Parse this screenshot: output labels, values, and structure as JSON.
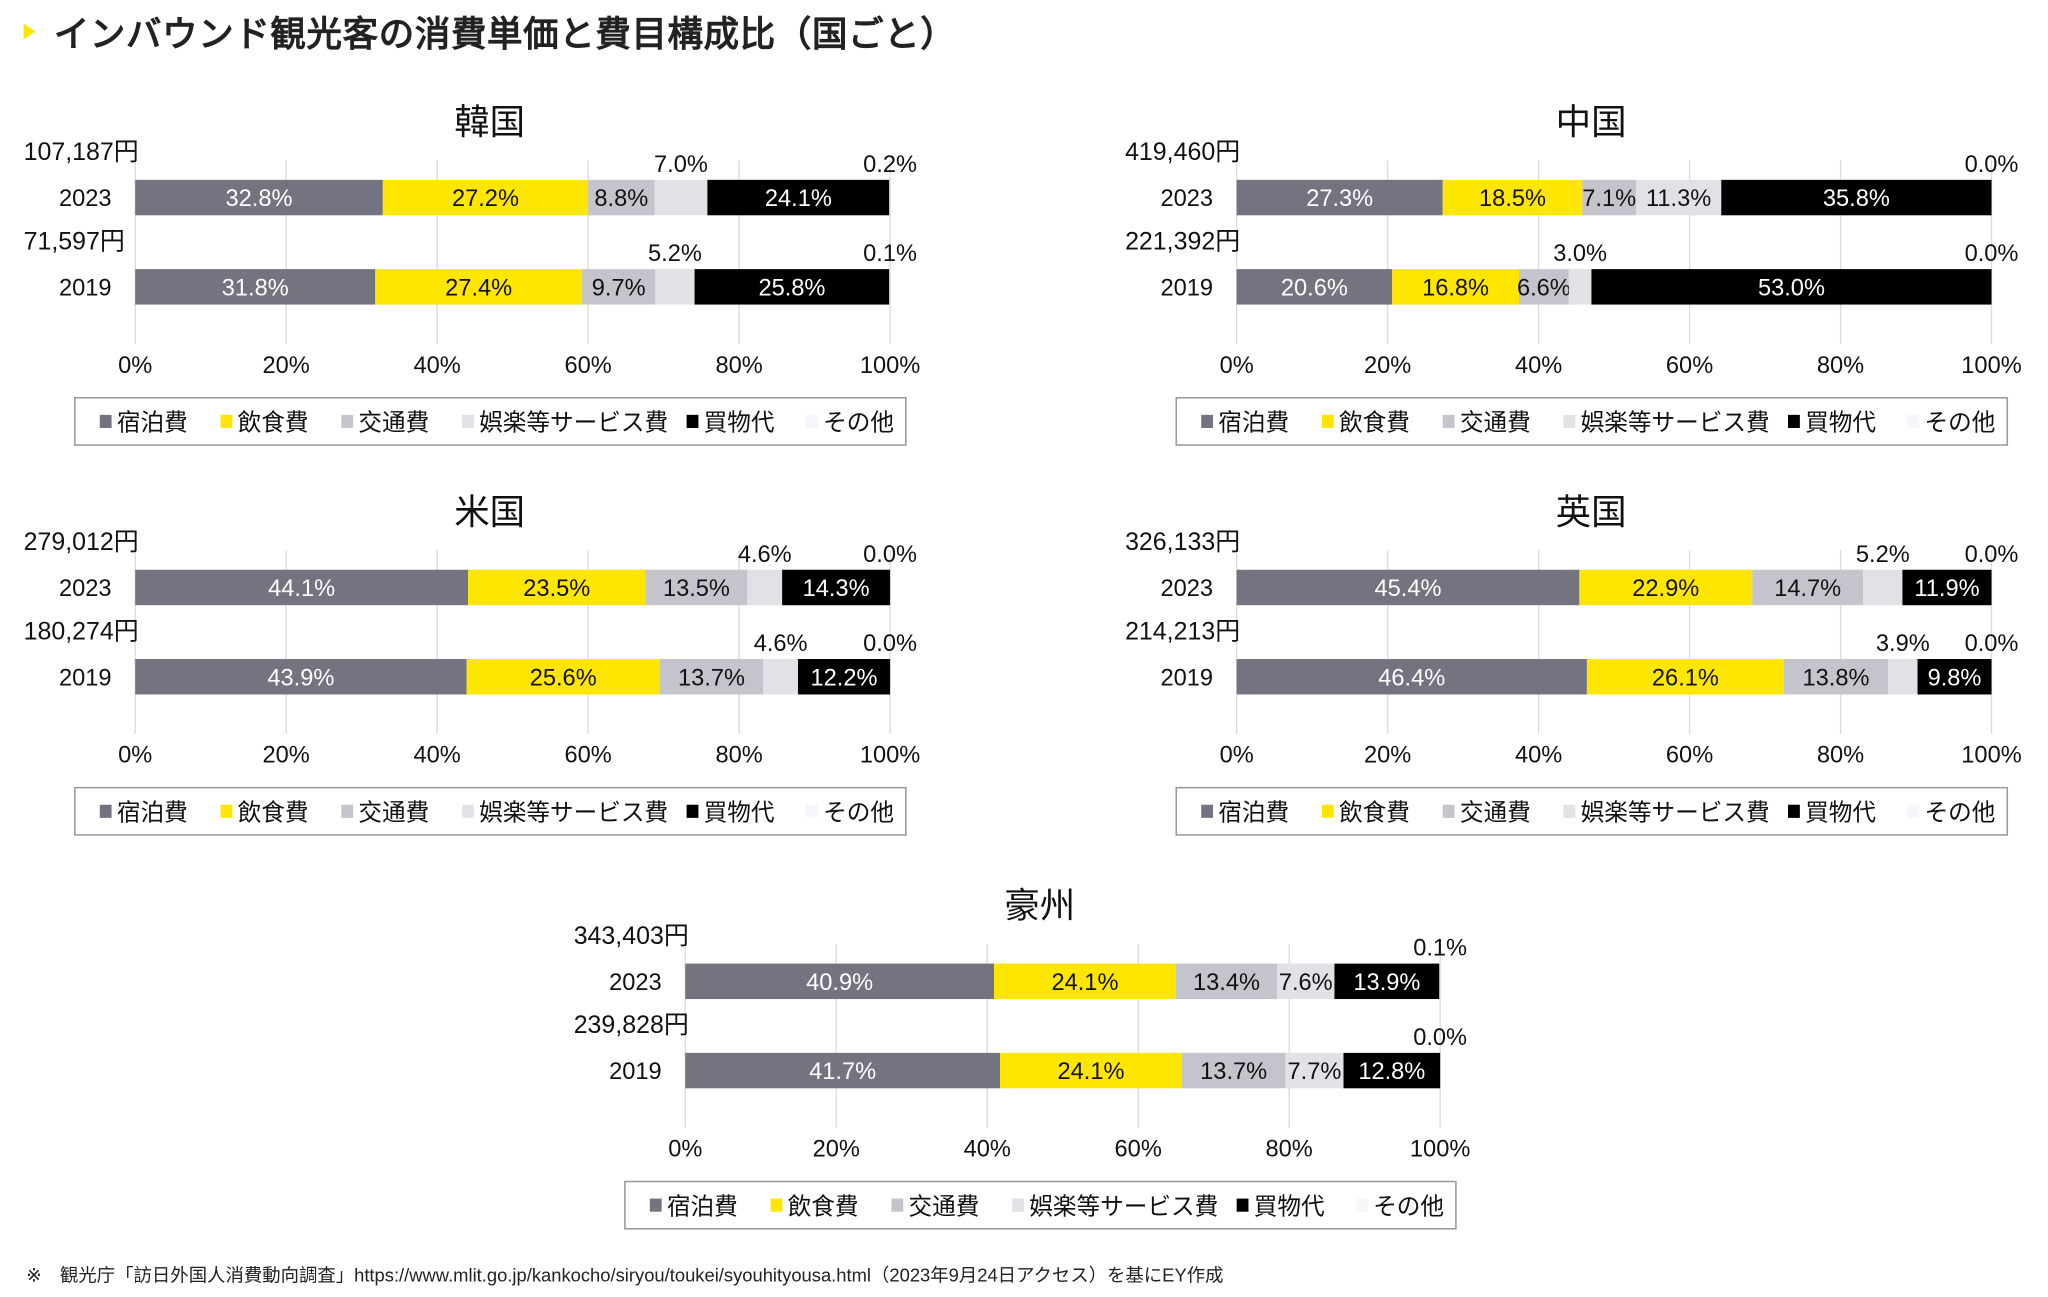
{
  "heading": {
    "title": "インバウンド観光客の消費単価と費目構成比（国ごと）"
  },
  "footer": {
    "note": "※　観光庁「訪日外国人消費動向調査」https://www.mlit.go.jp/kankocho/siryou/toukei/syouhityousa.html（2023年9月24日アクセス）を基にEY作成"
  },
  "colors": {
    "宿泊費": "#747480",
    "飲食費": "#FFE600",
    "交通費": "#C4C4CD",
    "娯楽等サービス費": "#E1E1E6",
    "買物代": "#000000",
    "その他": "#F6F6FA"
  },
  "chart_data": [
    {
      "type": "bar",
      "stacked": true,
      "orientation": "horizontal",
      "title": "韓国",
      "xlim": [
        0,
        100
      ],
      "x_ticks": [
        "0%",
        "20%",
        "40%",
        "60%",
        "80%",
        "100%"
      ],
      "legend": [
        "宿泊費",
        "飲食費",
        "交通費",
        "娯楽等サービス費",
        "買物代",
        "その他"
      ],
      "legend_position": "bottom",
      "rows": [
        {
          "year": "2023",
          "amount": "107,187円",
          "values": [
            32.8,
            27.2,
            8.8,
            7.0,
            24.1,
            0.2
          ],
          "labels": [
            "32.8%",
            "27.2%",
            "8.8%",
            "7.0%",
            "24.1%",
            "0.2%"
          ],
          "label_pos": [
            "in",
            "in",
            "in",
            "above",
            "in",
            "above"
          ]
        },
        {
          "year": "2019",
          "amount": "71,597円",
          "values": [
            31.8,
            27.4,
            9.7,
            5.2,
            25.8,
            0.1
          ],
          "labels": [
            "31.8%",
            "27.4%",
            "9.7%",
            "5.2%",
            "25.8%",
            "0.1%"
          ],
          "label_pos": [
            "in",
            "in",
            "in",
            "above",
            "in",
            "above"
          ]
        }
      ]
    },
    {
      "type": "bar",
      "stacked": true,
      "orientation": "horizontal",
      "title": "中国",
      "xlim": [
        0,
        100
      ],
      "x_ticks": [
        "0%",
        "20%",
        "40%",
        "60%",
        "80%",
        "100%"
      ],
      "legend": [
        "宿泊費",
        "飲食費",
        "交通費",
        "娯楽等サービス費",
        "買物代",
        "その他"
      ],
      "legend_position": "bottom",
      "rows": [
        {
          "year": "2023",
          "amount": "419,460円",
          "values": [
            27.3,
            18.5,
            7.1,
            11.3,
            35.8,
            0.0
          ],
          "labels": [
            "27.3%",
            "18.5%",
            "7.1%",
            "11.3%",
            "35.8%",
            "0.0%"
          ],
          "label_pos": [
            "in",
            "in",
            "in",
            "in",
            "in",
            "above"
          ]
        },
        {
          "year": "2019",
          "amount": "221,392円",
          "values": [
            20.6,
            16.8,
            6.6,
            3.0,
            53.0,
            0.0
          ],
          "labels": [
            "20.6%",
            "16.8%",
            "6.6%",
            "3.0%",
            "53.0%",
            "0.0%"
          ],
          "label_pos": [
            "in",
            "in",
            "in",
            "above",
            "in",
            "above"
          ]
        }
      ]
    },
    {
      "type": "bar",
      "stacked": true,
      "orientation": "horizontal",
      "title": "米国",
      "xlim": [
        0,
        100
      ],
      "x_ticks": [
        "0%",
        "20%",
        "40%",
        "60%",
        "80%",
        "100%"
      ],
      "legend": [
        "宿泊費",
        "飲食費",
        "交通費",
        "娯楽等サービス費",
        "買物代",
        "その他"
      ],
      "legend_position": "bottom",
      "rows": [
        {
          "year": "2023",
          "amount": "279,012円",
          "values": [
            44.1,
            23.5,
            13.5,
            4.6,
            14.3,
            0.0
          ],
          "labels": [
            "44.1%",
            "23.5%",
            "13.5%",
            "4.6%",
            "14.3%",
            "0.0%"
          ],
          "label_pos": [
            "in",
            "in",
            "in",
            "above",
            "in",
            "above"
          ]
        },
        {
          "year": "2019",
          "amount": "180,274円",
          "values": [
            43.9,
            25.6,
            13.7,
            4.6,
            12.2,
            0.0
          ],
          "labels": [
            "43.9%",
            "25.6%",
            "13.7%",
            "4.6%",
            "12.2%",
            "0.0%"
          ],
          "label_pos": [
            "in",
            "in",
            "in",
            "above",
            "in",
            "above"
          ]
        }
      ]
    },
    {
      "type": "bar",
      "stacked": true,
      "orientation": "horizontal",
      "title": "英国",
      "xlim": [
        0,
        100
      ],
      "x_ticks": [
        "0%",
        "20%",
        "40%",
        "60%",
        "80%",
        "100%"
      ],
      "legend": [
        "宿泊費",
        "飲食費",
        "交通費",
        "娯楽等サービス費",
        "買物代",
        "その他"
      ],
      "legend_position": "bottom",
      "rows": [
        {
          "year": "2023",
          "amount": "326,133円",
          "values": [
            45.4,
            22.9,
            14.7,
            5.2,
            11.9,
            0.0
          ],
          "labels": [
            "45.4%",
            "22.9%",
            "14.7%",
            "5.2%",
            "11.9%",
            "0.0%"
          ],
          "label_pos": [
            "in",
            "in",
            "in",
            "above",
            "in",
            "above"
          ]
        },
        {
          "year": "2019",
          "amount": "214,213円",
          "values": [
            46.4,
            26.1,
            13.8,
            3.9,
            9.8,
            0.0
          ],
          "labels": [
            "46.4%",
            "26.1%",
            "13.8%",
            "3.9%",
            "9.8%",
            "0.0%"
          ],
          "label_pos": [
            "in",
            "in",
            "in",
            "above",
            "in",
            "above"
          ]
        }
      ]
    },
    {
      "type": "bar",
      "stacked": true,
      "orientation": "horizontal",
      "title": "豪州",
      "xlim": [
        0,
        100
      ],
      "x_ticks": [
        "0%",
        "20%",
        "40%",
        "60%",
        "80%",
        "100%"
      ],
      "legend": [
        "宿泊費",
        "飲食費",
        "交通費",
        "娯楽等サービス費",
        "買物代",
        "その他"
      ],
      "legend_position": "bottom",
      "rows": [
        {
          "year": "2023",
          "amount": "343,403円",
          "values": [
            40.9,
            24.1,
            13.4,
            7.6,
            13.9,
            0.1
          ],
          "labels": [
            "40.9%",
            "24.1%",
            "13.4%",
            "7.6%",
            "13.9%",
            "0.1%"
          ],
          "label_pos": [
            "in",
            "in",
            "in",
            "in",
            "in",
            "above"
          ]
        },
        {
          "year": "2019",
          "amount": "239,828円",
          "values": [
            41.7,
            24.1,
            13.7,
            7.7,
            12.8,
            0.0
          ],
          "labels": [
            "41.7%",
            "24.1%",
            "13.7%",
            "7.7%",
            "12.8%",
            "0.0%"
          ],
          "label_pos": [
            "in",
            "in",
            "in",
            "in",
            "in",
            "above"
          ]
        }
      ]
    }
  ]
}
